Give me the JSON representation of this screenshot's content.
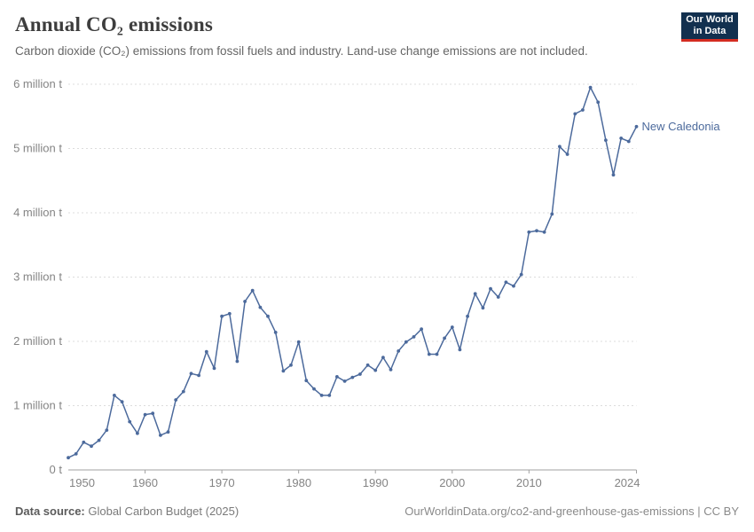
{
  "header": {
    "title": "Annual CO₂ emissions",
    "subtitle": "Carbon dioxide (CO₂) emissions from fossil fuels and industry. Land-use change emissions are not included.",
    "logo": {
      "line1": "Our World",
      "line2": "in Data"
    }
  },
  "footer": {
    "source_label": "Data source:",
    "source_value": " Global Carbon Budget (2025)",
    "citation": "OurWorldinData.org/co2-and-greenhouse-gas-emissions | CC BY"
  },
  "chart_data": {
    "type": "line",
    "title": "Annual CO₂ emissions",
    "entity_label": "New Caledonia",
    "unit": "t CO₂ per year",
    "x_range": [
      1950,
      2024
    ],
    "ylim_million_t": [
      0,
      6
    ],
    "grid": "horizontal dashed",
    "legend_position": "end-of-line label",
    "years": [
      1950,
      1951,
      1952,
      1953,
      1954,
      1955,
      1956,
      1957,
      1958,
      1959,
      1960,
      1961,
      1962,
      1963,
      1964,
      1965,
      1966,
      1967,
      1968,
      1969,
      1970,
      1971,
      1972,
      1973,
      1974,
      1975,
      1976,
      1977,
      1978,
      1979,
      1980,
      1981,
      1982,
      1983,
      1984,
      1985,
      1986,
      1987,
      1988,
      1989,
      1990,
      1991,
      1992,
      1993,
      1994,
      1995,
      1996,
      1997,
      1998,
      1999,
      2000,
      2001,
      2002,
      2003,
      2004,
      2005,
      2006,
      2007,
      2008,
      2009,
      2010,
      2011,
      2012,
      2013,
      2014,
      2015,
      2016,
      2017,
      2018,
      2019,
      2020,
      2021,
      2022,
      2023,
      2024
    ],
    "values_million_t": [
      0.19,
      0.25,
      0.43,
      0.37,
      0.46,
      0.62,
      1.16,
      1.06,
      0.75,
      0.57,
      0.86,
      0.88,
      0.54,
      0.59,
      1.09,
      1.22,
      1.5,
      1.47,
      1.84,
      1.58,
      2.39,
      2.43,
      1.69,
      2.62,
      2.79,
      2.53,
      2.39,
      2.14,
      1.54,
      1.63,
      1.99,
      1.39,
      1.26,
      1.16,
      1.16,
      1.45,
      1.38,
      1.44,
      1.49,
      1.63,
      1.55,
      1.75,
      1.56,
      1.85,
      1.99,
      2.07,
      2.19,
      1.8,
      1.8,
      2.05,
      2.22,
      1.87,
      2.39,
      2.74,
      2.52,
      2.82,
      2.69,
      2.92,
      2.86,
      3.04,
      3.7,
      3.72,
      3.7,
      3.98,
      5.03,
      4.91,
      5.54,
      5.6,
      5.95,
      5.72,
      5.13,
      4.59,
      5.16,
      5.11,
      5.34
    ],
    "yticks": [
      {
        "value": 0,
        "label": "0 t"
      },
      {
        "value": 1,
        "label": "1 million t"
      },
      {
        "value": 2,
        "label": "2 million t"
      },
      {
        "value": 3,
        "label": "3 million t"
      },
      {
        "value": 4,
        "label": "4 million t"
      },
      {
        "value": 5,
        "label": "5 million t"
      },
      {
        "value": 6,
        "label": "6 million t"
      }
    ],
    "xticks": [
      {
        "year": 1950,
        "label": "1950",
        "mark": false,
        "align": "start"
      },
      {
        "year": 1960,
        "label": "1960",
        "mark": true,
        "align": "middle"
      },
      {
        "year": 1970,
        "label": "1970",
        "mark": true,
        "align": "middle"
      },
      {
        "year": 1980,
        "label": "1980",
        "mark": true,
        "align": "middle"
      },
      {
        "year": 1990,
        "label": "1990",
        "mark": true,
        "align": "middle"
      },
      {
        "year": 2000,
        "label": "2000",
        "mark": true,
        "align": "middle"
      },
      {
        "year": 2010,
        "label": "2010",
        "mark": true,
        "align": "middle"
      },
      {
        "year": 2024,
        "label": "2024",
        "mark": true,
        "align": "end"
      }
    ],
    "colors": {
      "line": "#4c6a9c",
      "entity_label": "#4c6a9c",
      "grid": "#dcdcdc",
      "axis": "#a1a1a1",
      "tick_label": "#848484"
    }
  }
}
